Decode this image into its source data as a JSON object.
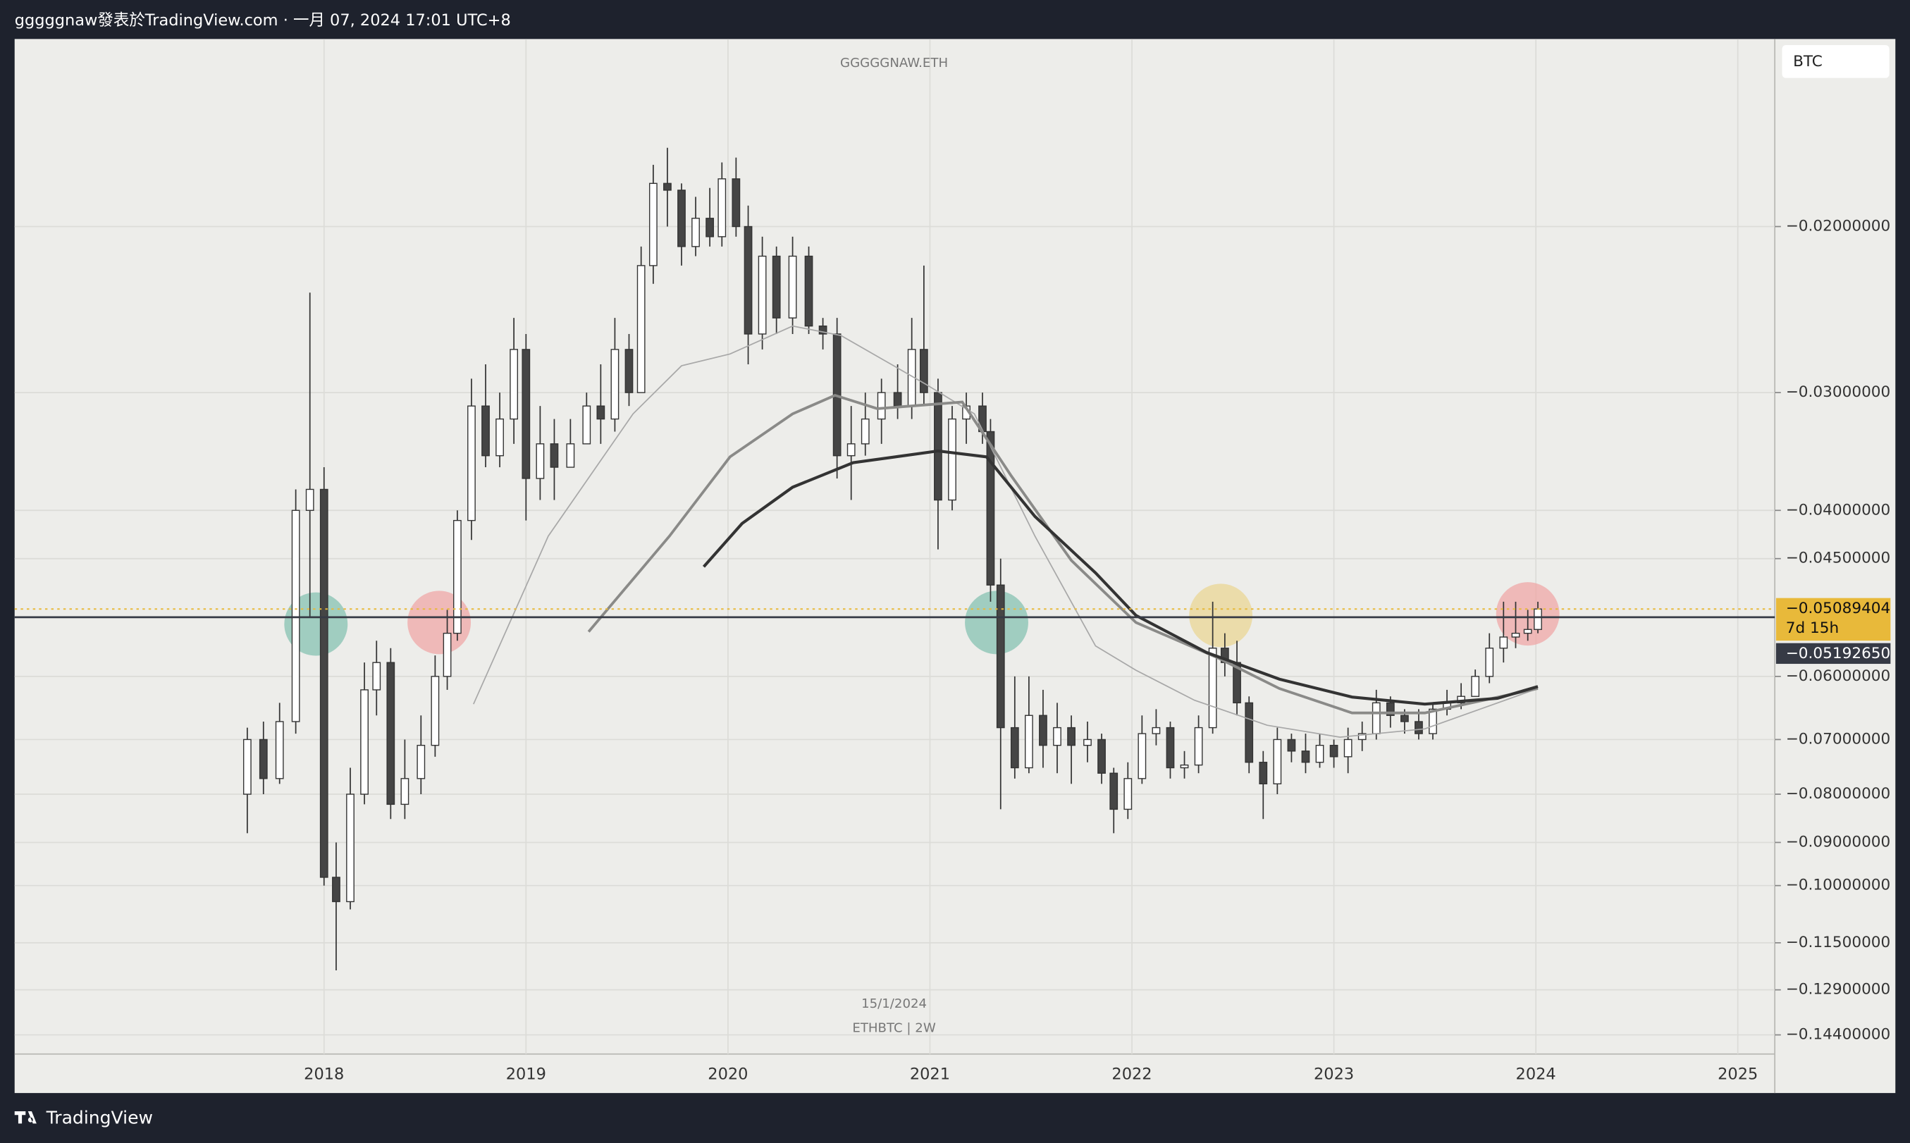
{
  "header": {
    "text": "gggggnaw發表於TradingView.com · 一月 07, 2024 17:01 UTC+8"
  },
  "footer": {
    "brand": "TradingView"
  },
  "chart_data": {
    "type": "candlestick",
    "title": "GGGGGNAW.ETH",
    "date_label": "15/1/2024",
    "symbol": "ETHBTC | 2W",
    "currency": "BTC",
    "log_scale": true,
    "grid": true,
    "up_color": "#ffffff",
    "down_color": "#454545",
    "wick_color": "#333333",
    "xlim": [
      2016.468,
      2025.183
    ],
    "xticks": [
      2018,
      2019,
      2020,
      2021,
      2022,
      2023,
      2024,
      2025
    ],
    "ylim": [
      -0.1509,
      -0.01265
    ],
    "yticks": [
      {
        "value": -0.02,
        "label": "−0.02000000"
      },
      {
        "value": -0.03,
        "label": "−0.03000000"
      },
      {
        "value": -0.04,
        "label": "−0.04000000"
      },
      {
        "value": -0.045,
        "label": "−0.04500000"
      },
      {
        "value": -0.06,
        "label": "−0.06000000"
      },
      {
        "value": -0.07,
        "label": "−0.07000000"
      },
      {
        "value": -0.08,
        "label": "−0.08000000"
      },
      {
        "value": -0.09,
        "label": "−0.09000000"
      },
      {
        "value": -0.1,
        "label": "−0.10000000"
      },
      {
        "value": -0.115,
        "label": "−0.11500000"
      },
      {
        "value": -0.129,
        "label": "−0.12900000"
      },
      {
        "value": -0.144,
        "label": "−0.14400000"
      }
    ],
    "last_price": {
      "value": -0.05089404,
      "label": "−0.05089404",
      "countdown": "7d 15h",
      "color": "#e8b93a"
    },
    "hline": {
      "value": -0.0519265,
      "label": "−0.05192650",
      "color": "#363a45"
    },
    "x": [
      2017.62,
      2017.7,
      2017.78,
      2017.86,
      2017.93,
      2018.0,
      2018.06,
      2018.13,
      2018.2,
      2018.26,
      2018.33,
      2018.4,
      2018.48,
      2018.55,
      2018.61,
      2018.66,
      2018.73,
      2018.8,
      2018.87,
      2018.94,
      2019.0,
      2019.07,
      2019.14,
      2019.22,
      2019.3,
      2019.37,
      2019.44,
      2019.51,
      2019.57,
      2019.63,
      2019.7,
      2019.77,
      2019.84,
      2019.91,
      2019.97,
      2020.04,
      2020.1,
      2020.17,
      2020.24,
      2020.32,
      2020.4,
      2020.47,
      2020.54,
      2020.61,
      2020.68,
      2020.76,
      2020.84,
      2020.91,
      2020.97,
      2021.04,
      2021.11,
      2021.18,
      2021.26,
      2021.3,
      2021.35,
      2021.42,
      2021.49,
      2021.56,
      2021.63,
      2021.7,
      2021.78,
      2021.85,
      2021.91,
      2021.98,
      2022.05,
      2022.12,
      2022.19,
      2022.26,
      2022.33,
      2022.4,
      2022.46,
      2022.52,
      2022.58,
      2022.65,
      2022.72,
      2022.79,
      2022.86,
      2022.93,
      2023.0,
      2023.07,
      2023.14,
      2023.21,
      2023.28,
      2023.35,
      2023.42,
      2023.49,
      2023.56,
      2023.63,
      2023.7,
      2023.77,
      2023.84,
      2023.9,
      2023.96,
      2024.01
    ],
    "open": [
      -0.08,
      -0.07,
      -0.077,
      -0.067,
      -0.04,
      -0.038,
      -0.098,
      -0.104,
      -0.08,
      -0.062,
      -0.058,
      -0.082,
      -0.077,
      -0.071,
      -0.06,
      -0.054,
      -0.041,
      -0.031,
      -0.035,
      -0.032,
      -0.027,
      -0.037,
      -0.034,
      -0.036,
      -0.034,
      -0.031,
      -0.032,
      -0.027,
      -0.03,
      -0.022,
      -0.018,
      -0.0183,
      -0.021,
      -0.0196,
      -0.0205,
      -0.0178,
      -0.02,
      -0.026,
      -0.0215,
      -0.025,
      -0.0215,
      -0.0255,
      -0.026,
      -0.035,
      -0.034,
      -0.032,
      -0.03,
      -0.031,
      -0.027,
      -0.03,
      -0.039,
      -0.032,
      -0.031,
      -0.033,
      -0.048,
      -0.068,
      -0.075,
      -0.066,
      -0.071,
      -0.068,
      -0.071,
      -0.07,
      -0.076,
      -0.083,
      -0.077,
      -0.069,
      -0.068,
      -0.075,
      -0.0745,
      -0.068,
      -0.056,
      -0.058,
      -0.064,
      -0.074,
      -0.078,
      -0.07,
      -0.072,
      -0.074,
      -0.071,
      -0.073,
      -0.07,
      -0.069,
      -0.064,
      -0.066,
      -0.067,
      -0.069,
      -0.065,
      -0.064,
      -0.063,
      -0.06,
      -0.056,
      -0.0545,
      -0.054,
      -0.0535
    ],
    "high": [
      -0.068,
      -0.067,
      -0.064,
      -0.038,
      -0.0235,
      -0.036,
      -0.09,
      -0.075,
      -0.058,
      -0.055,
      -0.056,
      -0.07,
      -0.066,
      -0.057,
      -0.051,
      -0.04,
      -0.029,
      -0.028,
      -0.03,
      -0.025,
      -0.026,
      -0.031,
      -0.032,
      -0.032,
      -0.03,
      -0.028,
      -0.025,
      -0.026,
      -0.021,
      -0.0172,
      -0.0165,
      -0.018,
      -0.0186,
      -0.0182,
      -0.0171,
      -0.0169,
      -0.019,
      -0.0205,
      -0.021,
      -0.0205,
      -0.021,
      -0.025,
      -0.025,
      -0.031,
      -0.03,
      -0.029,
      -0.028,
      -0.025,
      -0.022,
      -0.029,
      -0.031,
      -0.03,
      -0.03,
      -0.032,
      -0.045,
      -0.06,
      -0.06,
      -0.062,
      -0.064,
      -0.066,
      -0.067,
      -0.069,
      -0.075,
      -0.074,
      -0.066,
      -0.065,
      -0.067,
      -0.072,
      -0.066,
      -0.05,
      -0.054,
      -0.055,
      -0.063,
      -0.072,
      -0.068,
      -0.069,
      -0.069,
      -0.069,
      -0.07,
      -0.068,
      -0.067,
      -0.062,
      -0.063,
      -0.065,
      -0.065,
      -0.064,
      -0.062,
      -0.061,
      -0.059,
      -0.054,
      -0.05,
      -0.05,
      -0.051,
      -0.05
    ],
    "low": [
      -0.088,
      -0.08,
      -0.078,
      -0.069,
      -0.052,
      -0.1,
      -0.123,
      -0.106,
      -0.082,
      -0.066,
      -0.085,
      -0.085,
      -0.08,
      -0.073,
      -0.062,
      -0.055,
      -0.043,
      -0.036,
      -0.036,
      -0.034,
      -0.041,
      -0.039,
      -0.039,
      -0.036,
      -0.034,
      -0.034,
      -0.033,
      -0.031,
      -0.03,
      -0.023,
      -0.02,
      -0.022,
      -0.0215,
      -0.021,
      -0.021,
      -0.0205,
      -0.028,
      -0.027,
      -0.026,
      -0.026,
      -0.026,
      -0.027,
      -0.037,
      -0.039,
      -0.035,
      -0.034,
      -0.032,
      -0.032,
      -0.031,
      -0.044,
      -0.04,
      -0.034,
      -0.034,
      -0.05,
      -0.083,
      -0.077,
      -0.076,
      -0.075,
      -0.076,
      -0.078,
      -0.074,
      -0.078,
      -0.088,
      -0.085,
      -0.078,
      -0.071,
      -0.077,
      -0.077,
      -0.076,
      -0.069,
      -0.06,
      -0.066,
      -0.076,
      -0.085,
      -0.08,
      -0.074,
      -0.076,
      -0.075,
      -0.075,
      -0.076,
      -0.072,
      -0.07,
      -0.068,
      -0.069,
      -0.07,
      -0.07,
      -0.066,
      -0.065,
      -0.063,
      -0.061,
      -0.058,
      -0.056,
      -0.055,
      -0.054
    ],
    "close": [
      -0.07,
      -0.077,
      -0.067,
      -0.04,
      -0.038,
      -0.098,
      -0.104,
      -0.08,
      -0.062,
      -0.058,
      -0.082,
      -0.077,
      -0.071,
      -0.06,
      -0.054,
      -0.041,
      -0.031,
      -0.035,
      -0.032,
      -0.027,
      -0.037,
      -0.034,
      -0.036,
      -0.034,
      -0.031,
      -0.032,
      -0.027,
      -0.03,
      -0.022,
      -0.018,
      -0.0183,
      -0.021,
      -0.0196,
      -0.0205,
      -0.0178,
      -0.02,
      -0.026,
      -0.0215,
      -0.025,
      -0.0215,
      -0.0255,
      -0.026,
      -0.035,
      -0.034,
      -0.032,
      -0.03,
      -0.031,
      -0.027,
      -0.03,
      -0.039,
      -0.032,
      -0.031,
      -0.033,
      -0.048,
      -0.068,
      -0.075,
      -0.066,
      -0.071,
      -0.068,
      -0.071,
      -0.07,
      -0.076,
      -0.083,
      -0.077,
      -0.069,
      -0.068,
      -0.075,
      -0.0745,
      -0.068,
      -0.056,
      -0.058,
      -0.064,
      -0.074,
      -0.078,
      -0.07,
      -0.072,
      -0.074,
      -0.071,
      -0.073,
      -0.07,
      -0.069,
      -0.064,
      -0.066,
      -0.067,
      -0.069,
      -0.065,
      -0.064,
      -0.063,
      -0.06,
      -0.056,
      -0.0545,
      -0.054,
      -0.0535,
      -0.05089404
    ],
    "moving_averages": [
      {
        "color": "#a8a8a8",
        "x": [
          2018.74,
          2019.11,
          2019.53,
          2019.77,
          2020.01,
          2020.32,
          2020.56,
          2020.98,
          2021.22,
          2021.52,
          2021.82,
          2022.02,
          2022.31,
          2022.67,
          2023.03,
          2023.45,
          2024.01
        ],
        "values": [
          -0.0642,
          -0.0426,
          -0.0316,
          -0.0281,
          -0.0273,
          -0.0255,
          -0.0261,
          -0.0294,
          -0.0316,
          -0.0426,
          -0.0557,
          -0.0591,
          -0.0636,
          -0.0676,
          -0.0696,
          -0.0682,
          -0.0618
        ]
      },
      {
        "color": "#8a8a88",
        "x": [
          2019.31,
          2019.71,
          2020.01,
          2020.32,
          2020.53,
          2020.74,
          2021.16,
          2021.4,
          2021.7,
          2022.02,
          2022.43,
          2022.73,
          2023.09,
          2023.45,
          2024.01
        ],
        "values": [
          -0.0538,
          -0.0426,
          -0.0351,
          -0.0316,
          -0.0302,
          -0.0312,
          -0.0307,
          -0.0367,
          -0.0452,
          -0.0526,
          -0.0574,
          -0.0618,
          -0.0656,
          -0.0656,
          -0.0618
        ]
      },
      {
        "color": "#333333",
        "x": [
          2019.88,
          2020.07,
          2020.32,
          2020.62,
          2021.04,
          2021.28,
          2021.52,
          2021.82,
          2022.02,
          2022.37,
          2022.73,
          2023.09,
          2023.45,
          2023.81,
          2024.01
        ],
        "values": [
          -0.0459,
          -0.0413,
          -0.0378,
          -0.0356,
          -0.0346,
          -0.0351,
          -0.0406,
          -0.0466,
          -0.0517,
          -0.0566,
          -0.0604,
          -0.0631,
          -0.0642,
          -0.0633,
          -0.0615
        ]
      }
    ],
    "highlights": [
      {
        "x": 2017.96,
        "y": -0.0528,
        "color": "#7fbfae"
      },
      {
        "x": 2018.57,
        "y": -0.0526,
        "color": "#f0a3a3"
      },
      {
        "x": 2021.33,
        "y": -0.0526,
        "color": "#7fbfae"
      },
      {
        "x": 2022.44,
        "y": -0.0517,
        "color": "#ead48f"
      },
      {
        "x": 2023.96,
        "y": -0.0515,
        "color": "#f0a3a3"
      }
    ]
  }
}
